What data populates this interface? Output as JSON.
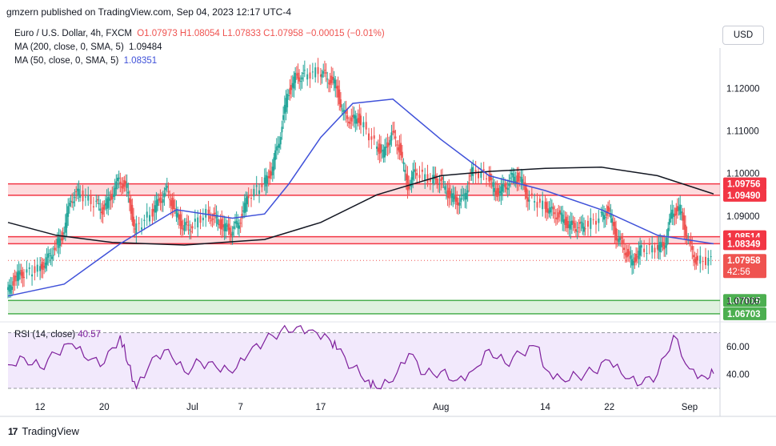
{
  "header": {
    "published_by": "gmzern published on TradingView.com, Sep 04, 2023 12:17 UTC-4"
  },
  "legend": {
    "symbol": "Euro / U.S. Dollar, 4h, FXCM",
    "open": "O1.07973",
    "high": "H1.08054",
    "low": "L1.07833",
    "close": "C1.07958",
    "change": "−0.00015 (−0.01%)",
    "ma200_label": "MA (200, close, 0, SMA, 5)",
    "ma200_value": "1.09484",
    "ma50_label": "MA (50, close, 0, SMA, 5)",
    "ma50_value": "1.08351"
  },
  "currency_button": "USD",
  "footer": {
    "brand": "TradingView",
    "logo": "17"
  },
  "colors": {
    "up": "#26a69a",
    "down": "#ef5350",
    "ma50": "#3f51d9",
    "ma200": "#131722",
    "zone_red_fill": "rgba(242,54,69,0.18)",
    "zone_green_fill": "rgba(76,175,80,0.18)",
    "rsi_line": "#7e1f9c",
    "rsi_band": "rgba(149,76,233,0.12)"
  },
  "chart_data": {
    "type": "candlestick",
    "symbol": "EURUSD",
    "timeframe": "4h",
    "x_ticks": [
      "12",
      "20",
      "Jul",
      "7",
      "17",
      "Aug",
      "14",
      "22",
      "Sep"
    ],
    "y_ticks": [
      "1.12000",
      "1.11000",
      "1.10000",
      "1.09000",
      "1.08000",
      "1.07000"
    ],
    "y_range": [
      1.0655,
      1.1295
    ],
    "x_range": [
      "2023-06-08",
      "2023-09-04"
    ],
    "price_tags": {
      "last": "1.07958",
      "countdown": "42:56",
      "ma200": "1.09484",
      "ma50": "1.08351"
    },
    "zones": [
      {
        "kind": "resistance",
        "top": 1.09756,
        "bottom": 1.0949,
        "label_top": "1.09756",
        "label_bottom": "1.09490"
      },
      {
        "kind": "resistance",
        "top": 1.08514,
        "bottom": 1.08349,
        "label_top": "1.08514",
        "label_bottom": "1.08349"
      },
      {
        "kind": "support",
        "top": 1.07015,
        "bottom": 1.06703,
        "label_top": "1.07015",
        "label_bottom": "1.06703"
      }
    ],
    "close_series": [
      [
        "2023-06-08",
        1.0715
      ],
      [
        "2023-06-09",
        1.0755
      ],
      [
        "2023-06-10",
        1.0765
      ],
      [
        "2023-06-12",
        1.0775
      ],
      [
        "2023-06-13",
        1.0795
      ],
      [
        "2023-06-14",
        1.0825
      ],
      [
        "2023-06-15",
        1.0855
      ],
      [
        "2023-06-16",
        1.094
      ],
      [
        "2023-06-17",
        1.0955
      ],
      [
        "2023-06-19",
        1.093
      ],
      [
        "2023-06-20",
        1.0915
      ],
      [
        "2023-06-21",
        1.0945
      ],
      [
        "2023-06-22",
        1.0985
      ],
      [
        "2023-06-23",
        1.0965
      ],
      [
        "2023-06-24",
        1.0865
      ],
      [
        "2023-06-26",
        1.0905
      ],
      [
        "2023-06-27",
        1.0935
      ],
      [
        "2023-06-28",
        1.096
      ],
      [
        "2023-06-29",
        1.091
      ],
      [
        "2023-06-30",
        1.0875
      ],
      [
        "2023-07-01",
        1.0875
      ],
      [
        "2023-07-03",
        1.0905
      ],
      [
        "2023-07-04",
        1.0895
      ],
      [
        "2023-07-05",
        1.0875
      ],
      [
        "2023-07-06",
        1.0865
      ],
      [
        "2023-07-07",
        1.0885
      ],
      [
        "2023-07-08",
        1.094
      ],
      [
        "2023-07-10",
        1.0975
      ],
      [
        "2023-07-11",
        1.1005
      ],
      [
        "2023-07-12",
        1.108
      ],
      [
        "2023-07-13",
        1.1185
      ],
      [
        "2023-07-14",
        1.1225
      ],
      [
        "2023-07-15",
        1.123
      ],
      [
        "2023-07-17",
        1.124
      ],
      [
        "2023-07-18",
        1.1225
      ],
      [
        "2023-07-19",
        1.121
      ],
      [
        "2023-07-20",
        1.114
      ],
      [
        "2023-07-21",
        1.1125
      ],
      [
        "2023-07-22",
        1.113
      ],
      [
        "2023-07-24",
        1.107
      ],
      [
        "2023-07-25",
        1.1045
      ],
      [
        "2023-07-26",
        1.1095
      ],
      [
        "2023-07-27",
        1.106
      ],
      [
        "2023-07-28",
        1.097
      ],
      [
        "2023-07-29",
        1.1005
      ],
      [
        "2023-07-31",
        1.0985
      ],
      [
        "2023-08-01",
        1.0985
      ],
      [
        "2023-08-02",
        1.0955
      ],
      [
        "2023-08-03",
        1.0935
      ],
      [
        "2023-08-04",
        1.094
      ],
      [
        "2023-08-05",
        1.1005
      ],
      [
        "2023-08-07",
        1.0995
      ],
      [
        "2023-08-08",
        1.0955
      ],
      [
        "2023-08-09",
        1.0965
      ],
      [
        "2023-08-10",
        1.099
      ],
      [
        "2023-08-11",
        1.099
      ],
      [
        "2023-08-12",
        1.0945
      ],
      [
        "2023-08-14",
        1.0925
      ],
      [
        "2023-08-15",
        1.091
      ],
      [
        "2023-08-16",
        1.09
      ],
      [
        "2023-08-17",
        1.088
      ],
      [
        "2023-08-18",
        1.0875
      ],
      [
        "2023-08-19",
        1.0875
      ],
      [
        "2023-08-21",
        1.0895
      ],
      [
        "2023-08-22",
        1.0915
      ],
      [
        "2023-08-23",
        1.0855
      ],
      [
        "2023-08-24",
        1.0825
      ],
      [
        "2023-08-25",
        1.079
      ],
      [
        "2023-08-26",
        1.082
      ],
      [
        "2023-08-28",
        1.0825
      ],
      [
        "2023-08-29",
        1.083
      ],
      [
        "2023-08-30",
        1.091
      ],
      [
        "2023-08-31",
        1.0915
      ],
      [
        "2023-09-01",
        1.084
      ],
      [
        "2023-09-02",
        1.0795
      ],
      [
        "2023-09-04",
        1.0796
      ]
    ],
    "ma50_series": [
      [
        "2023-06-08",
        1.0712
      ],
      [
        "2023-06-15",
        1.074
      ],
      [
        "2023-06-22",
        1.0835
      ],
      [
        "2023-06-29",
        1.0915
      ],
      [
        "2023-07-06",
        1.0895
      ],
      [
        "2023-07-10",
        1.0905
      ],
      [
        "2023-07-13",
        1.0975
      ],
      [
        "2023-07-17",
        1.1085
      ],
      [
        "2023-07-21",
        1.1165
      ],
      [
        "2023-07-26",
        1.1175
      ],
      [
        "2023-08-01",
        1.108
      ],
      [
        "2023-08-07",
        1.0995
      ],
      [
        "2023-08-14",
        1.096
      ],
      [
        "2023-08-21",
        1.0915
      ],
      [
        "2023-08-28",
        1.0855
      ],
      [
        "2023-09-04",
        1.0835
      ]
    ],
    "ma200_series": [
      [
        "2023-06-08",
        1.0885
      ],
      [
        "2023-06-14",
        1.0855
      ],
      [
        "2023-06-21",
        1.0838
      ],
      [
        "2023-06-30",
        1.0832
      ],
      [
        "2023-07-10",
        1.0845
      ],
      [
        "2023-07-17",
        1.0885
      ],
      [
        "2023-07-24",
        1.095
      ],
      [
        "2023-08-01",
        1.0995
      ],
      [
        "2023-08-07",
        1.1005
      ],
      [
        "2023-08-14",
        1.1012
      ],
      [
        "2023-08-21",
        1.1015
      ],
      [
        "2023-08-28",
        1.0995
      ],
      [
        "2023-09-04",
        1.0952
      ]
    ],
    "rsi": {
      "label": "RSI (14, close)",
      "value": "40.57",
      "y_ticks": [
        "60.00",
        "40.00"
      ],
      "y_range": [
        26,
        76
      ],
      "band": [
        30,
        70
      ],
      "series": [
        [
          "2023-06-08",
          47
        ],
        [
          "2023-06-10",
          52
        ],
        [
          "2023-06-12",
          45
        ],
        [
          "2023-06-14",
          55
        ],
        [
          "2023-06-16",
          62
        ],
        [
          "2023-06-18",
          50
        ],
        [
          "2023-06-20",
          48
        ],
        [
          "2023-06-22",
          68
        ],
        [
          "2023-06-23",
          47
        ],
        [
          "2023-06-24",
          30
        ],
        [
          "2023-06-26",
          52
        ],
        [
          "2023-06-28",
          58
        ],
        [
          "2023-06-30",
          42
        ],
        [
          "2023-07-02",
          49
        ],
        [
          "2023-07-04",
          45
        ],
        [
          "2023-07-06",
          41
        ],
        [
          "2023-07-08",
          55
        ],
        [
          "2023-07-10",
          64
        ],
        [
          "2023-07-12",
          71
        ],
        [
          "2023-07-14",
          74
        ],
        [
          "2023-07-16",
          72
        ],
        [
          "2023-07-18",
          66
        ],
        [
          "2023-07-19",
          58
        ],
        [
          "2023-07-21",
          45
        ],
        [
          "2023-07-23",
          36
        ],
        [
          "2023-07-24",
          30
        ],
        [
          "2023-07-26",
          35
        ],
        [
          "2023-07-28",
          55
        ],
        [
          "2023-07-30",
          40
        ],
        [
          "2023-08-01",
          42
        ],
        [
          "2023-08-03",
          36
        ],
        [
          "2023-08-05",
          43
        ],
        [
          "2023-08-07",
          58
        ],
        [
          "2023-08-09",
          48
        ],
        [
          "2023-08-11",
          55
        ],
        [
          "2023-08-13",
          60
        ],
        [
          "2023-08-14",
          44
        ],
        [
          "2023-08-16",
          37
        ],
        [
          "2023-08-18",
          39
        ],
        [
          "2023-08-20",
          42
        ],
        [
          "2023-08-22",
          50
        ],
        [
          "2023-08-24",
          37
        ],
        [
          "2023-08-26",
          33
        ],
        [
          "2023-08-28",
          40
        ],
        [
          "2023-08-30",
          68
        ],
        [
          "2023-09-01",
          44
        ],
        [
          "2023-09-03",
          38
        ],
        [
          "2023-09-04",
          40.57
        ]
      ]
    }
  }
}
